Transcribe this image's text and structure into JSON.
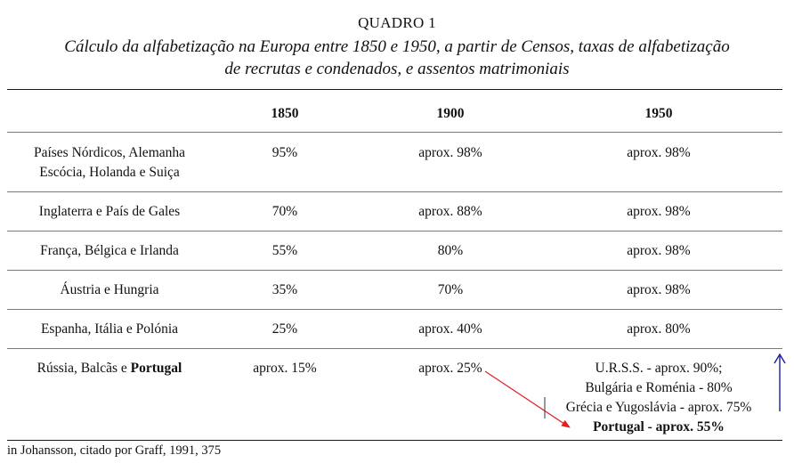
{
  "caption": {
    "label": "QUADRO 1",
    "title_line1": "Cálculo da alfabetização na Europa entre 1850 e 1950, a partir de Censos, taxas de alfabetização",
    "title_line2": "de recrutas e condenados, e assentos matrimoniais"
  },
  "table": {
    "headers": [
      "",
      "1850",
      "1900",
      "1950"
    ],
    "rows": [
      {
        "region": [
          "Países Nórdicos, Alemanha",
          "Escócia, Holanda e Suiça"
        ],
        "v1850": "95%",
        "v1900": "aprox. 98%",
        "v1950": "aprox. 98%"
      },
      {
        "region": [
          "Inglaterra e País de Gales"
        ],
        "v1850": "70%",
        "v1900": "aprox. 88%",
        "v1950": "aprox. 98%"
      },
      {
        "region": [
          "França, Bélgica e Irlanda"
        ],
        "v1850": "55%",
        "v1900": "80%",
        "v1950": "aprox. 98%"
      },
      {
        "region": [
          "Áustria e Hungria"
        ],
        "v1850": "35%",
        "v1900": "70%",
        "v1950": "aprox. 98%"
      },
      {
        "region": [
          "Espanha, Itália e Polónia"
        ],
        "v1850": "25%",
        "v1900": "aprox. 40%",
        "v1950": "aprox. 80%"
      },
      {
        "region_prefix": "Rússia, Balcãs e ",
        "region_bold": "Portugal",
        "v1850": "aprox. 15%",
        "v1900": "aprox. 25%",
        "v1950_lines": [
          "U.R.S.S. - aprox. 90%;",
          "Bulgária e Roménia - 80%",
          "Grécia e Yugoslávia - aprox. 75%",
          "Portugal - aprox. 55%"
        ]
      }
    ]
  },
  "source": "in Johansson, citado por Graff, 1991, 375",
  "annotations": {
    "red_arrow_color": "#e02020",
    "blue_arrow_color": "#1a1aa6"
  }
}
